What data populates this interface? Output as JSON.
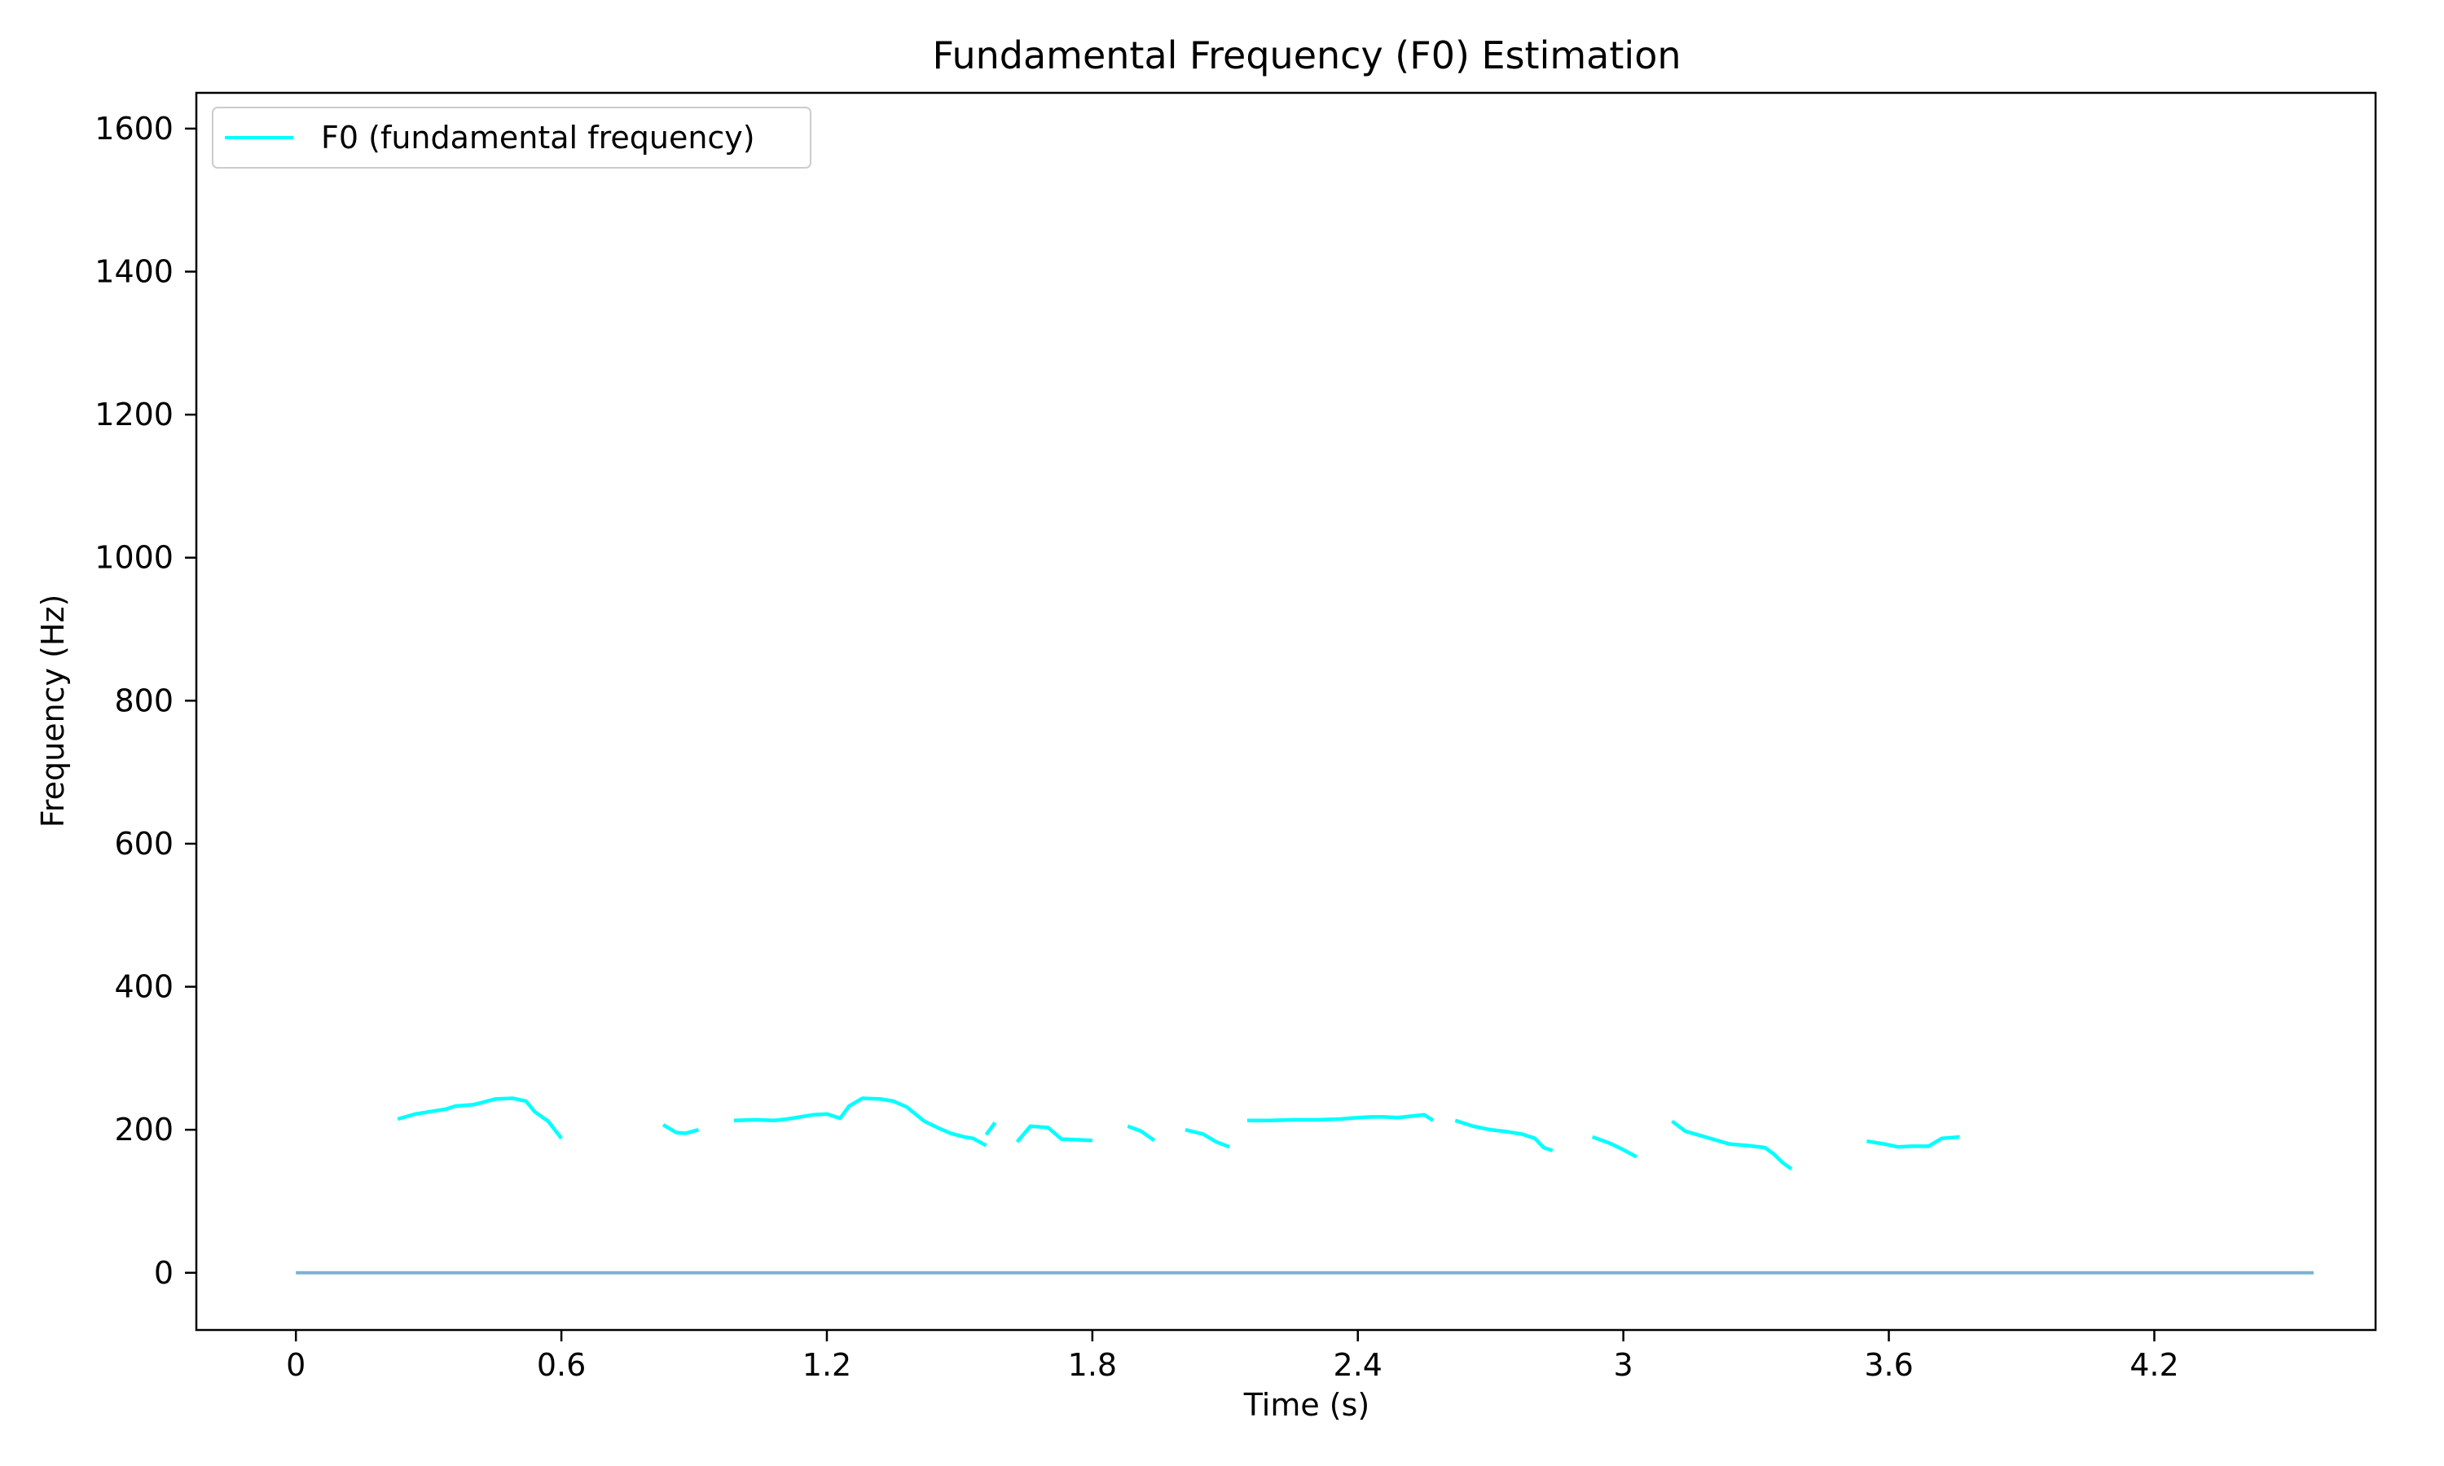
{
  "chart_data": {
    "type": "line",
    "title": "Fundamental Frequency (F0) Estimation",
    "xlabel": "Time (s)",
    "ylabel": "Frequency (Hz)",
    "xlim": [
      -0.225,
      4.7
    ],
    "ylim": [
      -80,
      1650
    ],
    "xticks": [
      0,
      0.6,
      1.2,
      1.8,
      2.4,
      3,
      3.6,
      4.2
    ],
    "xtick_labels": [
      "0",
      "0.6",
      "1.2",
      "1.8",
      "2.4",
      "3",
      "3.6",
      "4.2"
    ],
    "yticks": [
      0,
      200,
      400,
      600,
      800,
      1000,
      1200,
      1400,
      1600
    ],
    "ytick_labels": [
      "0",
      "200",
      "400",
      "600",
      "800",
      "1000",
      "1200",
      "1400",
      "1600"
    ],
    "grid": false,
    "legend": {
      "position": "top-left",
      "entries": [
        "F0 (fundamental frequency)"
      ]
    },
    "series": [
      {
        "name": "F0 (fundamental frequency)",
        "color": "#00ffff",
        "segments": [
          [
            [
              0.23,
              215
            ],
            [
              0.27,
              222
            ],
            [
              0.31,
              226
            ],
            [
              0.34,
              229
            ],
            [
              0.36,
              233
            ],
            [
              0.4,
              235
            ],
            [
              0.42,
              238
            ],
            [
              0.45,
              243
            ],
            [
              0.49,
              244
            ],
            [
              0.52,
              240
            ],
            [
              0.54,
              225
            ],
            [
              0.57,
              212
            ],
            [
              0.6,
              188
            ]
          ],
          [
            [
              0.83,
              207
            ],
            [
              0.86,
              196
            ],
            [
              0.88,
              195
            ],
            [
              0.91,
              200
            ]
          ],
          [
            [
              0.99,
              213
            ],
            [
              1.04,
              214
            ],
            [
              1.08,
              213
            ],
            [
              1.11,
              215
            ],
            [
              1.14,
              218
            ],
            [
              1.17,
              221
            ],
            [
              1.2,
              222
            ],
            [
              1.23,
              216
            ],
            [
              1.25,
              233
            ],
            [
              1.28,
              244
            ],
            [
              1.32,
              243
            ],
            [
              1.35,
              240
            ],
            [
              1.38,
              232
            ],
            [
              1.42,
              212
            ],
            [
              1.45,
              203
            ],
            [
              1.48,
              195
            ],
            [
              1.51,
              190
            ],
            [
              1.53,
              188
            ],
            [
              1.56,
              178
            ]
          ],
          [
            [
              1.56,
              193
            ],
            [
              1.58,
              210
            ]
          ],
          [
            [
              1.63,
              183
            ],
            [
              1.66,
              205
            ],
            [
              1.7,
              203
            ],
            [
              1.73,
              187
            ],
            [
              1.77,
              186
            ],
            [
              1.8,
              185
            ]
          ],
          [
            [
              1.88,
              205
            ],
            [
              1.91,
              198
            ],
            [
              1.94,
              185
            ]
          ],
          [
            [
              2.01,
              200
            ],
            [
              2.05,
              194
            ],
            [
              2.08,
              183
            ],
            [
              2.11,
              176
            ]
          ],
          [
            [
              2.15,
              213
            ],
            [
              2.2,
              213
            ],
            [
              2.26,
              214
            ],
            [
              2.31,
              214
            ],
            [
              2.36,
              215
            ],
            [
              2.4,
              217
            ],
            [
              2.43,
              218
            ],
            [
              2.46,
              218
            ],
            [
              2.49,
              217
            ],
            [
              2.52,
              219
            ],
            [
              2.55,
              221
            ],
            [
              2.57,
              213
            ]
          ],
          [
            [
              2.62,
              213
            ],
            [
              2.66,
              205
            ],
            [
              2.7,
              200
            ],
            [
              2.74,
              197
            ],
            [
              2.77,
              194
            ],
            [
              2.8,
              188
            ],
            [
              2.82,
              175
            ],
            [
              2.84,
              171
            ]
          ],
          [
            [
              2.93,
              190
            ],
            [
              2.97,
              181
            ],
            [
              3.0,
              172
            ],
            [
              3.03,
              162
            ]
          ],
          [
            [
              3.11,
              212
            ],
            [
              3.14,
              198
            ],
            [
              3.19,
              189
            ],
            [
              3.24,
              180
            ],
            [
              3.28,
              178
            ],
            [
              3.32,
              175
            ],
            [
              3.34,
              166
            ],
            [
              3.36,
              154
            ],
            [
              3.38,
              145
            ]
          ],
          [
            [
              3.55,
              184
            ],
            [
              3.59,
              180
            ],
            [
              3.62,
              176
            ],
            [
              3.65,
              177
            ],
            [
              3.69,
              177
            ],
            [
              3.72,
              188
            ],
            [
              3.76,
              190
            ]
          ]
        ]
      },
      {
        "name": "",
        "color": "#7fb0d0",
        "points": [
          [
            0,
            0
          ],
          [
            4.56,
            0
          ]
        ]
      }
    ]
  }
}
